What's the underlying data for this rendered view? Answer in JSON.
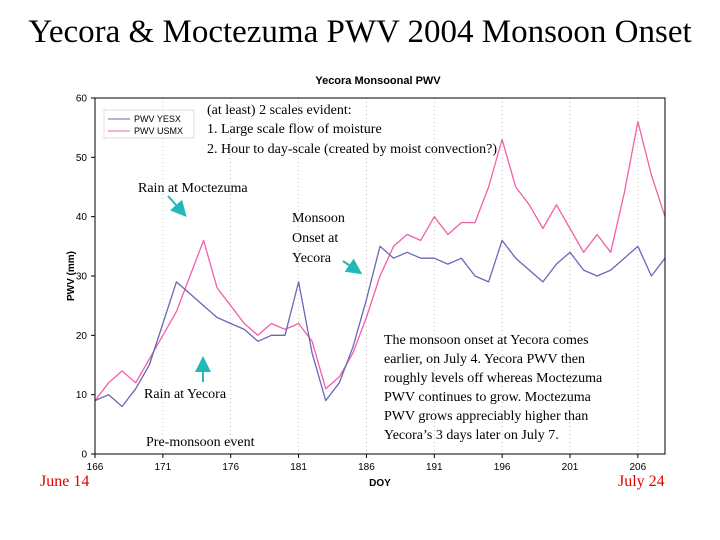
{
  "slide": {
    "title": "Yecora & Moctezuma PWV 2004 Monsoon Onset"
  },
  "colors": {
    "yecora": "#6b66b8",
    "moctezuma": "#f25fa8",
    "arrow": "#22b8b8",
    "date": "#e00000"
  },
  "chart_data": {
    "type": "line",
    "title": "Yecora Monsoonal PWV",
    "xlabel": "DOY",
    "ylabel": "PWV (mm)",
    "xlim": [
      166,
      208
    ],
    "ylim": [
      0,
      60
    ],
    "xticks": [
      166,
      171,
      176,
      181,
      186,
      191,
      196,
      201,
      206
    ],
    "yticks": [
      0,
      10,
      20,
      30,
      40,
      50,
      60
    ],
    "grid": "vertical-dotted",
    "legend_position": "top-left",
    "series": [
      {
        "name": "PWV YESX",
        "x": [
          166,
          167,
          168,
          169,
          170,
          171,
          172,
          173,
          174,
          175,
          176,
          177,
          178,
          179,
          180,
          181,
          182,
          183,
          184,
          185,
          186,
          187,
          188,
          189,
          190,
          191,
          192,
          193,
          194,
          195,
          196,
          197,
          198,
          199,
          200,
          201,
          202,
          203,
          204,
          205,
          206,
          207,
          208
        ],
        "y": [
          9,
          10,
          8,
          11,
          15,
          22,
          29,
          27,
          25,
          23,
          22,
          21,
          19,
          20,
          20,
          29,
          17,
          9,
          12,
          18,
          26,
          35,
          33,
          34,
          33,
          33,
          32,
          33,
          30,
          29,
          36,
          33,
          31,
          29,
          32,
          34,
          31,
          30,
          31,
          33,
          35,
          30,
          33
        ]
      },
      {
        "name": "PWV USMX",
        "x": [
          166,
          167,
          168,
          169,
          170,
          171,
          172,
          173,
          174,
          175,
          176,
          177,
          178,
          179,
          180,
          181,
          182,
          183,
          184,
          185,
          186,
          187,
          188,
          189,
          190,
          191,
          192,
          193,
          194,
          195,
          196,
          197,
          198,
          199,
          200,
          201,
          202,
          203,
          204,
          205,
          206,
          207,
          208
        ],
        "y": [
          9,
          12,
          14,
          12,
          16,
          20,
          24,
          30,
          36,
          28,
          25,
          22,
          20,
          22,
          21,
          22,
          19,
          11,
          13,
          17,
          23,
          30,
          35,
          37,
          36,
          40,
          37,
          39,
          39,
          45,
          53,
          45,
          42,
          38,
          42,
          38,
          34,
          37,
          34,
          44,
          56,
          47,
          40
        ]
      }
    ],
    "xaxis_end_labels": {
      "left": "June 14",
      "right": "July 24"
    },
    "annotations": {
      "scales_title": "(at least) 2 scales evident:",
      "scale_1": "1. Large scale flow of moisture",
      "scale_2": "2. Hour to day-scale (created by moist convection?)",
      "rain_moctezuma": "Rain at Moctezuma",
      "rain_yecora": "Rain at Yecora",
      "onset_line1": "Monsoon",
      "onset_line2": "Onset at",
      "onset_line3": "Yecora",
      "premonsoon": "Pre-monsoon event",
      "summary": [
        "The monsoon onset at Yecora comes",
        "earlier, on July 4. Yecora PWV then",
        "roughly levels off whereas Moctezuma",
        "PWV continues to grow. Moctezuma",
        "PWV grows appreciably higher than",
        "Yecora’s 3 days later on July 7."
      ]
    }
  }
}
